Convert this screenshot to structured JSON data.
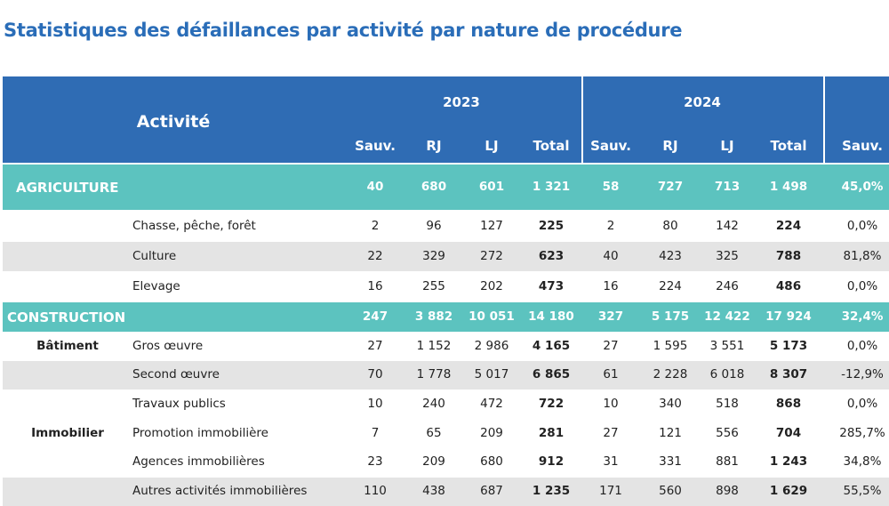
{
  "title": "Statistiques des défaillances par activité par nature de procédure",
  "header": {
    "activity": "Activité",
    "years": [
      "2023",
      "2024"
    ],
    "columns": [
      "Sauv.",
      "RJ",
      "LJ",
      "Total",
      "Sauv.",
      "RJ",
      "LJ",
      "Total",
      "Sauv."
    ]
  },
  "rows": [
    {
      "kind": "category",
      "label": "AGRICULTURE",
      "values": [
        "40",
        "680",
        "601",
        "1 321",
        "58",
        "727",
        "713",
        "1 498",
        "45,0%"
      ]
    },
    {
      "kind": "item",
      "label": "Chasse, pêche, forêt",
      "values": [
        "2",
        "96",
        "127",
        "225",
        "2",
        "80",
        "142",
        "224",
        "0,0%"
      ]
    },
    {
      "kind": "item",
      "label": "Culture",
      "values": [
        "22",
        "329",
        "272",
        "623",
        "40",
        "423",
        "325",
        "788",
        "81,8%"
      ]
    },
    {
      "kind": "item",
      "label": "Elevage",
      "values": [
        "16",
        "255",
        "202",
        "473",
        "16",
        "224",
        "246",
        "486",
        "0,0%"
      ]
    },
    {
      "kind": "category",
      "label": "CONSTRUCTION",
      "values": [
        "247",
        "3 882",
        "10 051",
        "14 180",
        "327",
        "5 175",
        "12 422",
        "17 924",
        "32,4%"
      ]
    },
    {
      "kind": "item",
      "group": "Bâtiment",
      "label": "Gros œuvre",
      "values": [
        "27",
        "1 152",
        "2 986",
        "4 165",
        "27",
        "1 595",
        "3 551",
        "5 173",
        "0,0%"
      ]
    },
    {
      "kind": "item",
      "label": "Second œuvre",
      "values": [
        "70",
        "1 778",
        "5 017",
        "6 865",
        "61",
        "2 228",
        "6 018",
        "8 307",
        "-12,9%"
      ]
    },
    {
      "kind": "item",
      "label": "Travaux publics",
      "values": [
        "10",
        "240",
        "472",
        "722",
        "10",
        "340",
        "518",
        "868",
        "0,0%"
      ]
    },
    {
      "kind": "item",
      "group": "Immobilier",
      "label": "Promotion immobilière",
      "values": [
        "7",
        "65",
        "209",
        "281",
        "27",
        "121",
        "556",
        "704",
        "285,7%"
      ]
    },
    {
      "kind": "item",
      "label": "Agences immobilières",
      "values": [
        "23",
        "209",
        "680",
        "912",
        "31",
        "331",
        "881",
        "1 243",
        "34,8%"
      ]
    },
    {
      "kind": "item",
      "label": "Autres activités immobilières",
      "values": [
        "110",
        "438",
        "687",
        "1 235",
        "171",
        "560",
        "898",
        "1 629",
        "55,5%"
      ]
    }
  ]
}
